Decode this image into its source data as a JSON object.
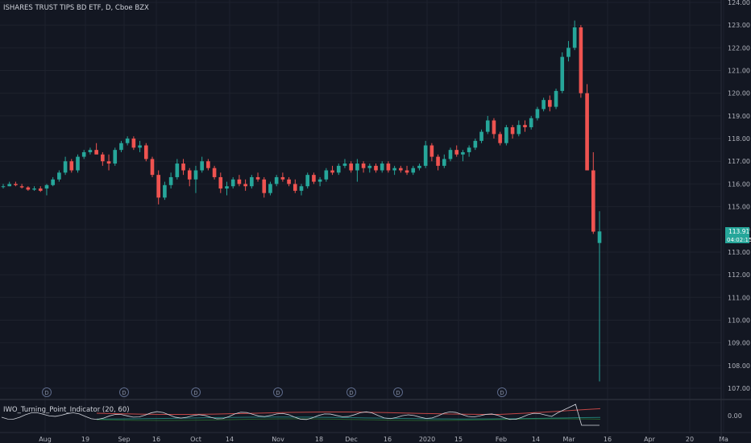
{
  "header": {
    "title": "ISHARES TRUST TIPS BD ETF, D, Cboe BZX"
  },
  "indicator": {
    "label": "IWO_Turning_Point_Indicator (20, 60)",
    "value_label": "0.00"
  },
  "price_tags": {
    "last": "113.91",
    "countdown": "04:02:15"
  },
  "dividend_marker": "D",
  "colors": {
    "background": "#131722",
    "grid": "#1e222d",
    "up": "#26a69a",
    "down": "#ef5350",
    "text": "#b2b5be",
    "indicator_line": "#d1d4dc",
    "indicator_red": "#ef5350",
    "indicator_green": "#26a69a"
  },
  "chart_data": {
    "type": "candlestick",
    "title": "ISHARES TRUST TIPS BD ETF, D, Cboe BZX",
    "y_ticks": [
      "107.00",
      "108.00",
      "109.00",
      "110.00",
      "111.00",
      "112.00",
      "113.00",
      "114.00",
      "115.00",
      "116.00",
      "117.00",
      "118.00",
      "119.00",
      "120.00",
      "121.00",
      "122.00",
      "123.00",
      "124.00"
    ],
    "y_range": [
      106.5,
      124.2
    ],
    "x_labels": [
      "Aug",
      "19",
      "Sep",
      "16",
      "Oct",
      "14",
      "Nov",
      "18",
      "Dec",
      "16",
      "2020",
      "15",
      "Feb",
      "14",
      "Mar",
      "16",
      "Apr",
      "20",
      "Ma"
    ],
    "last_price": 113.91,
    "dividend_count": 7,
    "candles": [
      [
        115.9,
        116.0,
        115.8,
        115.9
      ],
      [
        115.9,
        116.1,
        115.9,
        116.0
      ],
      [
        116.0,
        116.1,
        115.9,
        115.95
      ],
      [
        115.9,
        116.0,
        115.8,
        115.85
      ],
      [
        115.85,
        115.9,
        115.7,
        115.75
      ],
      [
        115.75,
        115.9,
        115.7,
        115.8
      ],
      [
        115.8,
        115.9,
        115.65,
        115.7
      ],
      [
        115.8,
        116.0,
        115.5,
        115.95
      ],
      [
        115.95,
        116.3,
        115.9,
        116.2
      ],
      [
        116.2,
        116.6,
        116.1,
        116.5
      ],
      [
        116.5,
        117.2,
        116.4,
        117.0
      ],
      [
        117.0,
        117.1,
        116.5,
        116.6
      ],
      [
        116.6,
        117.3,
        116.5,
        117.2
      ],
      [
        117.2,
        117.5,
        117.1,
        117.4
      ],
      [
        117.4,
        117.6,
        117.3,
        117.5
      ],
      [
        117.5,
        117.8,
        117.4,
        117.3
      ],
      [
        117.3,
        117.4,
        116.8,
        117.0
      ],
      [
        117.0,
        117.3,
        116.6,
        116.9
      ],
      [
        116.9,
        117.6,
        116.8,
        117.5
      ],
      [
        117.5,
        117.9,
        117.4,
        117.8
      ],
      [
        117.8,
        118.1,
        117.7,
        118.0
      ],
      [
        118.0,
        118.1,
        117.5,
        117.6
      ],
      [
        117.6,
        117.9,
        117.4,
        117.7
      ],
      [
        117.7,
        117.8,
        117.0,
        117.1
      ],
      [
        117.1,
        117.2,
        116.3,
        116.4
      ],
      [
        116.4,
        116.6,
        115.1,
        115.4
      ],
      [
        115.4,
        116.1,
        115.3,
        115.95
      ],
      [
        115.95,
        116.5,
        115.8,
        116.3
      ],
      [
        116.3,
        117.1,
        116.2,
        116.9
      ],
      [
        116.9,
        117.1,
        116.4,
        116.6
      ],
      [
        116.6,
        116.7,
        115.9,
        116.2
      ],
      [
        116.2,
        116.8,
        115.6,
        116.6
      ],
      [
        116.6,
        117.2,
        116.5,
        117.0
      ],
      [
        117.0,
        117.1,
        116.6,
        116.7
      ],
      [
        116.7,
        116.8,
        116.2,
        116.3
      ],
      [
        116.3,
        116.5,
        115.6,
        115.8
      ],
      [
        115.8,
        116.1,
        115.5,
        115.9
      ],
      [
        115.9,
        116.3,
        115.8,
        116.2
      ],
      [
        116.2,
        116.4,
        115.9,
        116.0
      ],
      [
        116.0,
        116.2,
        115.7,
        115.9
      ],
      [
        115.9,
        116.4,
        115.8,
        116.3
      ],
      [
        116.3,
        116.5,
        116.1,
        116.2
      ],
      [
        116.2,
        116.3,
        115.4,
        115.6
      ],
      [
        115.6,
        116.1,
        115.5,
        116.0
      ],
      [
        116.0,
        116.4,
        115.9,
        116.3
      ],
      [
        116.3,
        116.5,
        116.1,
        116.2
      ],
      [
        116.2,
        116.3,
        115.9,
        116.0
      ],
      [
        116.0,
        116.2,
        115.6,
        115.7
      ],
      [
        115.7,
        116.0,
        115.5,
        115.9
      ],
      [
        115.9,
        116.5,
        115.8,
        116.4
      ],
      [
        116.4,
        116.5,
        116.0,
        116.1
      ],
      [
        116.1,
        116.3,
        115.9,
        116.2
      ],
      [
        116.2,
        116.7,
        116.1,
        116.6
      ],
      [
        116.6,
        116.8,
        116.4,
        116.5
      ],
      [
        116.5,
        116.9,
        116.4,
        116.8
      ],
      [
        116.8,
        117.1,
        116.7,
        116.9
      ],
      [
        116.9,
        117.0,
        116.5,
        116.6
      ],
      [
        116.6,
        117.1,
        116.1,
        116.9
      ],
      [
        116.9,
        117.0,
        116.5,
        116.7
      ],
      [
        116.7,
        116.9,
        116.5,
        116.8
      ],
      [
        116.8,
        116.9,
        116.5,
        116.6
      ],
      [
        116.6,
        117.0,
        116.5,
        116.9
      ],
      [
        116.9,
        117.0,
        116.5,
        116.6
      ],
      [
        116.6,
        116.8,
        116.4,
        116.7
      ],
      [
        116.7,
        116.8,
        116.5,
        116.6
      ],
      [
        116.6,
        116.8,
        116.4,
        116.5
      ],
      [
        116.5,
        116.8,
        116.4,
        116.7
      ],
      [
        116.7,
        116.9,
        116.6,
        116.8
      ],
      [
        116.8,
        117.9,
        116.7,
        117.7
      ],
      [
        117.7,
        117.8,
        117.0,
        117.2
      ],
      [
        117.2,
        117.3,
        116.6,
        116.8
      ],
      [
        116.8,
        117.3,
        116.7,
        117.1
      ],
      [
        117.1,
        117.6,
        117.0,
        117.5
      ],
      [
        117.5,
        117.7,
        117.2,
        117.3
      ],
      [
        117.3,
        117.5,
        117.0,
        117.4
      ],
      [
        117.4,
        117.7,
        117.2,
        117.6
      ],
      [
        117.6,
        118.0,
        117.5,
        117.9
      ],
      [
        117.9,
        118.4,
        117.8,
        118.3
      ],
      [
        118.3,
        119.0,
        118.2,
        118.8
      ],
      [
        118.8,
        118.9,
        118.0,
        118.2
      ],
      [
        118.2,
        118.3,
        117.7,
        117.8
      ],
      [
        117.8,
        118.6,
        117.7,
        118.5
      ],
      [
        118.5,
        118.6,
        118.0,
        118.2
      ],
      [
        118.2,
        118.8,
        118.1,
        118.6
      ],
      [
        118.6,
        118.8,
        118.3,
        118.5
      ],
      [
        118.5,
        119.0,
        118.4,
        118.9
      ],
      [
        118.9,
        119.4,
        118.8,
        119.3
      ],
      [
        119.3,
        119.8,
        119.2,
        119.7
      ],
      [
        119.7,
        119.9,
        119.2,
        119.4
      ],
      [
        119.4,
        120.2,
        119.3,
        120.1
      ],
      [
        120.1,
        121.8,
        120.0,
        121.6
      ],
      [
        121.6,
        122.3,
        121.4,
        122.0
      ],
      [
        122.0,
        123.2,
        121.9,
        122.9
      ],
      [
        122.9,
        123.0,
        119.8,
        120.0
      ],
      [
        120.0,
        120.4,
        116.6,
        116.6
      ],
      [
        116.6,
        117.4,
        113.8,
        113.9
      ],
      [
        113.4,
        114.8,
        107.3,
        113.91
      ]
    ]
  }
}
